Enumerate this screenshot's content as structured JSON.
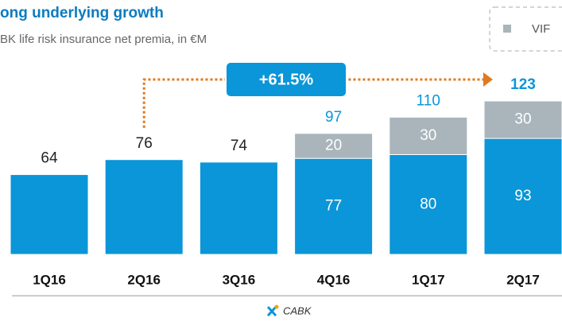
{
  "chart_data": {
    "type": "stacked_bar",
    "title": "ong underlying growth",
    "subtitle": "BK life risk insurance net premia, in €M",
    "categories": [
      "1Q16",
      "2Q16",
      "3Q16",
      "4Q16",
      "1Q17",
      "2Q17"
    ],
    "series": [
      {
        "color": "#0a96d8",
        "values": [
          64,
          76,
          74,
          77,
          80,
          93
        ]
      },
      {
        "name": "VIF",
        "color": "#a9b5bb",
        "values": [
          null,
          null,
          null,
          20,
          30,
          30
        ]
      }
    ],
    "totals": [
      64,
      76,
      74,
      97,
      110,
      123
    ],
    "annotation": "+61.5%",
    "footer": "CABK"
  }
}
